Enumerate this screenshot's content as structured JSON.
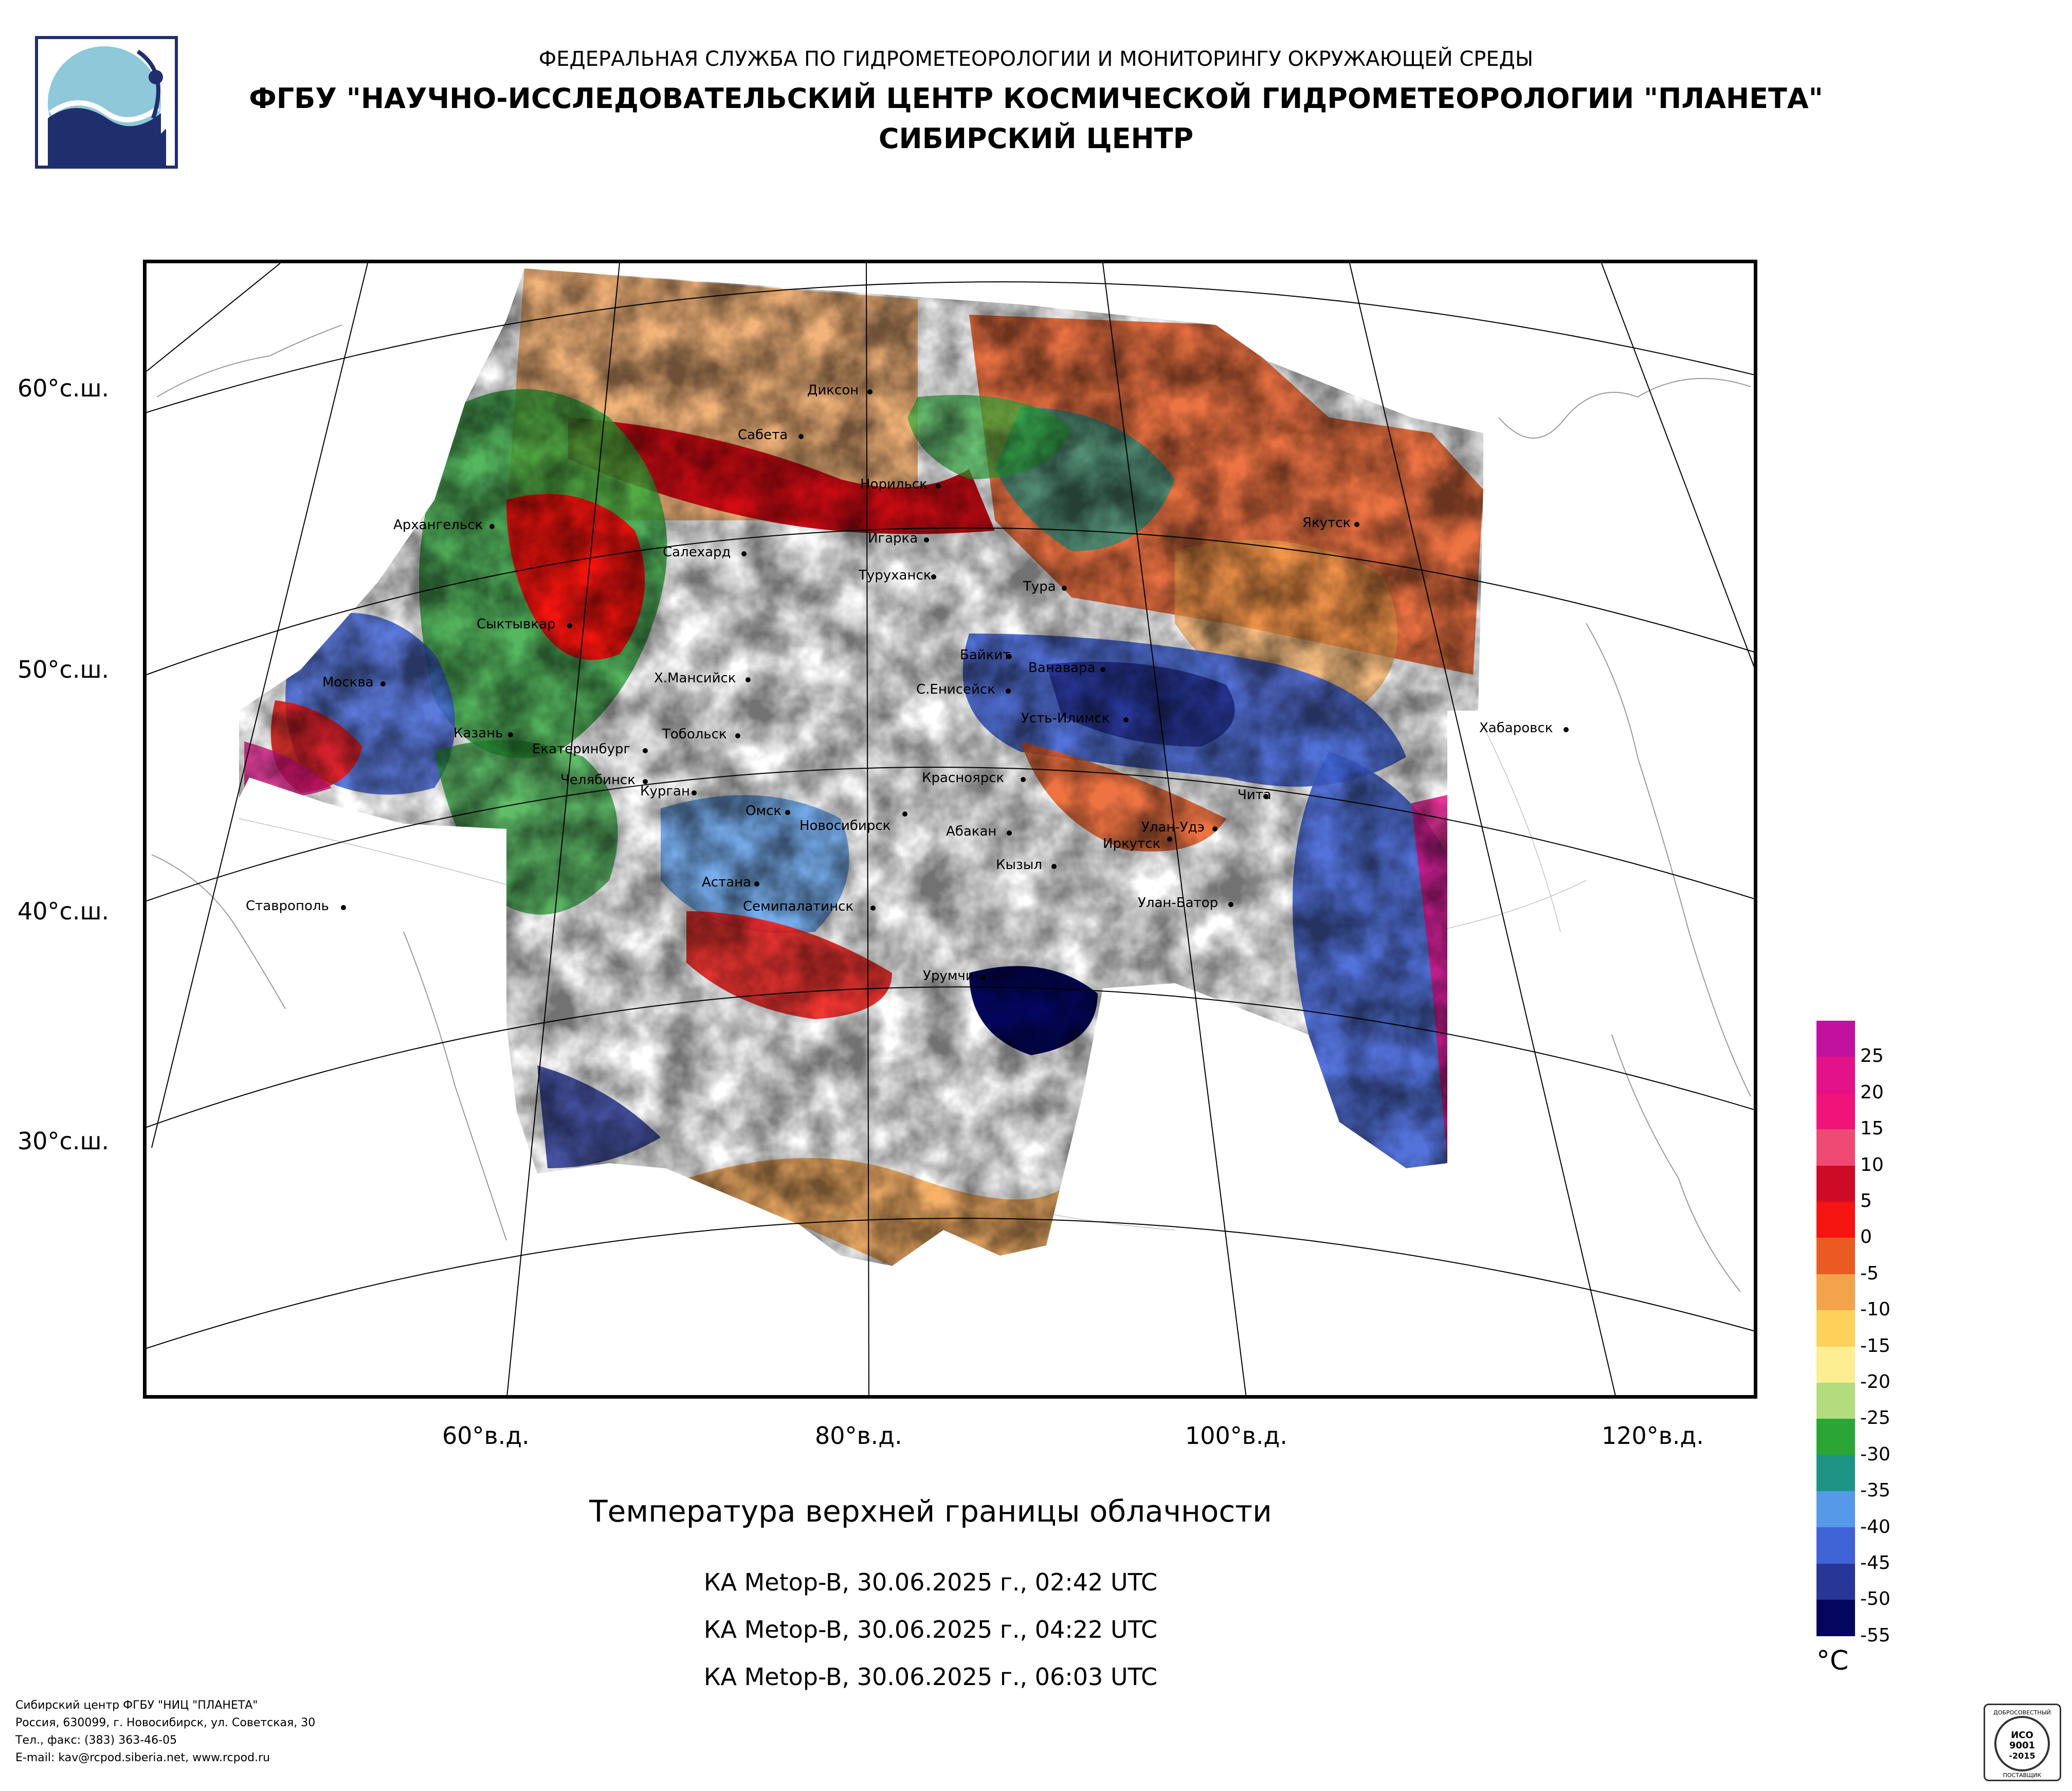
{
  "header": {
    "line1": "ФЕДЕРАЛЬНАЯ СЛУЖБА ПО ГИДРОМЕТЕОРОЛОГИИ И МОНИТОРИНГУ ОКРУЖАЮЩЕЙ СРЕДЫ",
    "line2": "ФГБУ \"НАУЧНО-ИССЛЕДОВАТЕЛЬСКИЙ ЦЕНТР КОСМИЧЕСКОЙ ГИДРОМЕТЕОРОЛОГИИ \"ПЛАНЕТА\"",
    "line3": "СИБИРСКИЙ ЦЕНТР"
  },
  "map": {
    "lat_labels": [
      "60°с.ш.",
      "50°с.ш.",
      "40°с.ш.",
      "30°с.ш."
    ],
    "lon_labels": [
      "60°в.д.",
      "80°в.д.",
      "100°в.д.",
      "120°в.д."
    ],
    "cities": [
      {
        "name": "Диксон"
      },
      {
        "name": "Сабета"
      },
      {
        "name": "Норильск"
      },
      {
        "name": "Архангельск"
      },
      {
        "name": "Салехард"
      },
      {
        "name": "Игарка"
      },
      {
        "name": "Туруханск"
      },
      {
        "name": "Тура"
      },
      {
        "name": "Якутск"
      },
      {
        "name": "Сыктывкар"
      },
      {
        "name": "Байкит"
      },
      {
        "name": "Ванавара"
      },
      {
        "name": "Москва"
      },
      {
        "name": "Х.Мансийск"
      },
      {
        "name": "С.Енисейск"
      },
      {
        "name": "Усть-Илимск"
      },
      {
        "name": "Хабаровск"
      },
      {
        "name": "Казань"
      },
      {
        "name": "Тобольск"
      },
      {
        "name": "Екатеринбург"
      },
      {
        "name": "Красноярск"
      },
      {
        "name": "Чита"
      },
      {
        "name": "Челябинск"
      },
      {
        "name": "Курган"
      },
      {
        "name": "Омск"
      },
      {
        "name": "Новосибирск"
      },
      {
        "name": "Абакан"
      },
      {
        "name": "Улан-Удэ"
      },
      {
        "name": "Иркутск"
      },
      {
        "name": "Кызыл"
      },
      {
        "name": "Ставрополь"
      },
      {
        "name": "Астана"
      },
      {
        "name": "Семипалатинск"
      },
      {
        "name": "Улан-Батор"
      },
      {
        "name": "Урумчи"
      }
    ]
  },
  "title": "Температура верхней границы облачности",
  "satellites": [
    "КА Metop-B, 30.06.2025 г., 02:42 UTC",
    "КА Metop-B, 30.06.2025 г., 04:22 UTC",
    "КА Metop-B, 30.06.2025 г., 06:03 UTC"
  ],
  "legend": {
    "unit": "°C",
    "labels": [
      "25",
      "20",
      "15",
      "10",
      "5",
      "0",
      "-5",
      "-10",
      "-15",
      "-20",
      "-25",
      "-30",
      "-35",
      "-40",
      "-45",
      "-50",
      "-55"
    ],
    "colors": [
      "#c0119f",
      "#e31288",
      "#f0137a",
      "#ef4a73",
      "#cf0a26",
      "#f5140f",
      "#ea5b22",
      "#f4a34d",
      "#fcd25a",
      "#fcee91",
      "#b3dc7c",
      "#2aa637",
      "#1d9585",
      "#5599e8",
      "#4063d6",
      "#283797",
      "#04065e"
    ]
  },
  "footer": {
    "line1": "Сибирский центр ФГБУ \"НИЦ \"ПЛАНЕТА\"",
    "line2": "Россия, 630099, г. Новосибирск, ул. Советская, 30",
    "line3": "Тел., факс: (383) 363-46-05",
    "line4": "E-mail: kav@rcpod.siberia.net, www.rcpod.ru"
  },
  "iso_badge": {
    "top": "ДОБРОСОВЕСТНЫЙ",
    "line1": "ИСО",
    "line2": "9001",
    "line3": "-2015",
    "bottom": "ПОСТАВЩИК"
  }
}
